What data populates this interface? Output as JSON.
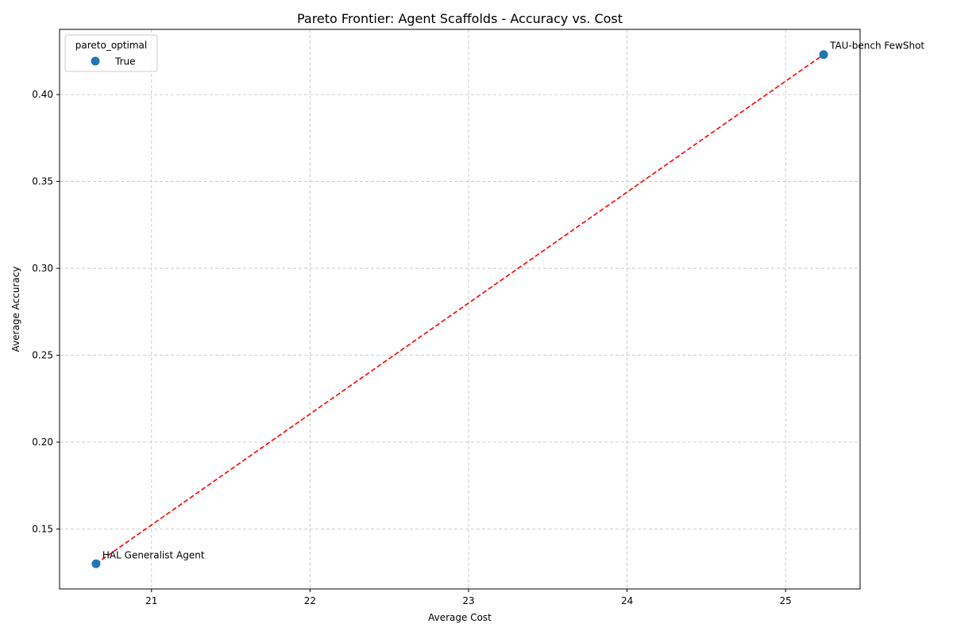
{
  "chart_data": {
    "type": "scatter",
    "title": "Pareto Frontier: Agent Scaffolds - Accuracy vs. Cost",
    "xlabel": "Average Cost",
    "ylabel": "Average Accuracy",
    "xlim": [
      20.42,
      25.47
    ],
    "ylim": [
      0.1155,
      0.4375
    ],
    "xticks": [
      21,
      22,
      23,
      24,
      25
    ],
    "yticks": [
      0.15,
      0.2,
      0.25,
      0.3,
      0.35,
      0.4
    ],
    "ytick_labels": [
      "0.15",
      "0.20",
      "0.25",
      "0.30",
      "0.35",
      "0.40"
    ],
    "grid": true,
    "legend": {
      "title": "pareto_optimal",
      "placement": "top-left",
      "entries": [
        {
          "label": "True",
          "color": "#1f77b4"
        }
      ]
    },
    "points": [
      {
        "label": "HAL Generalist Agent",
        "x": 20.65,
        "y": 0.13,
        "pareto_optimal": true
      },
      {
        "label": "TAU-bench FewShot",
        "x": 25.24,
        "y": 0.423,
        "pareto_optimal": true
      }
    ],
    "frontier_line": {
      "color": "#ff0000",
      "style": "dashed"
    },
    "colors": {
      "point": "#1f77b4",
      "frontier": "#ff0000",
      "grid": "#c0c0c0"
    }
  }
}
